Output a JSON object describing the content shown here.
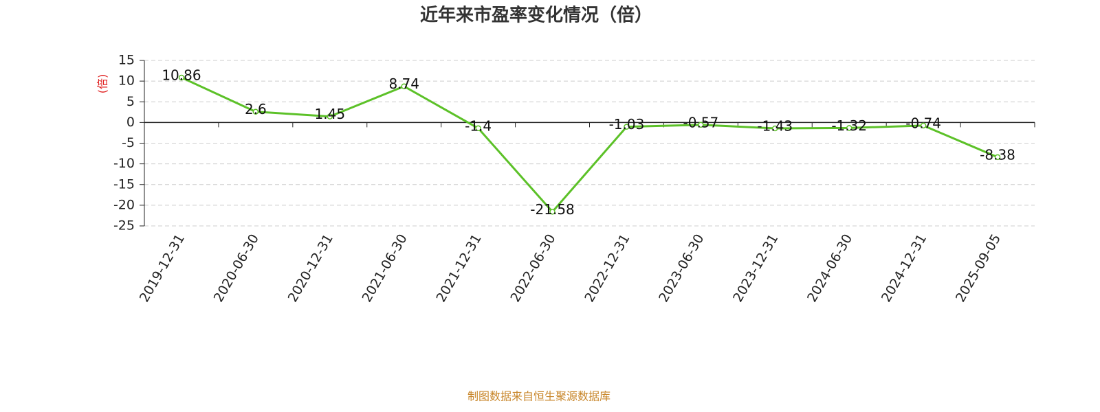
{
  "chart_data": {
    "type": "line",
    "title": "近年来市盈率变化情况（倍）",
    "y_label": "(倍)",
    "source": "制图数据来自恒生聚源数据库",
    "categories": [
      "2019-12-31",
      "2020-06-30",
      "2020-12-31",
      "2021-06-30",
      "2021-12-31",
      "2022-06-30",
      "2022-12-31",
      "2023-06-30",
      "2023-12-31",
      "2024-06-30",
      "2024-12-31",
      "2025-09-05"
    ],
    "series": [
      {
        "name": "市盈率",
        "color": "#5cc128",
        "values": [
          10.86,
          2.6,
          1.45,
          8.74,
          -1.4,
          -21.58,
          -1.03,
          -0.57,
          -1.43,
          -1.32,
          -0.74,
          -8.38
        ]
      }
    ],
    "ylim": [
      -25,
      15
    ],
    "yticks": [
      -25,
      -20,
      -15,
      -10,
      -5,
      0,
      5,
      10,
      15
    ],
    "grid": true
  }
}
